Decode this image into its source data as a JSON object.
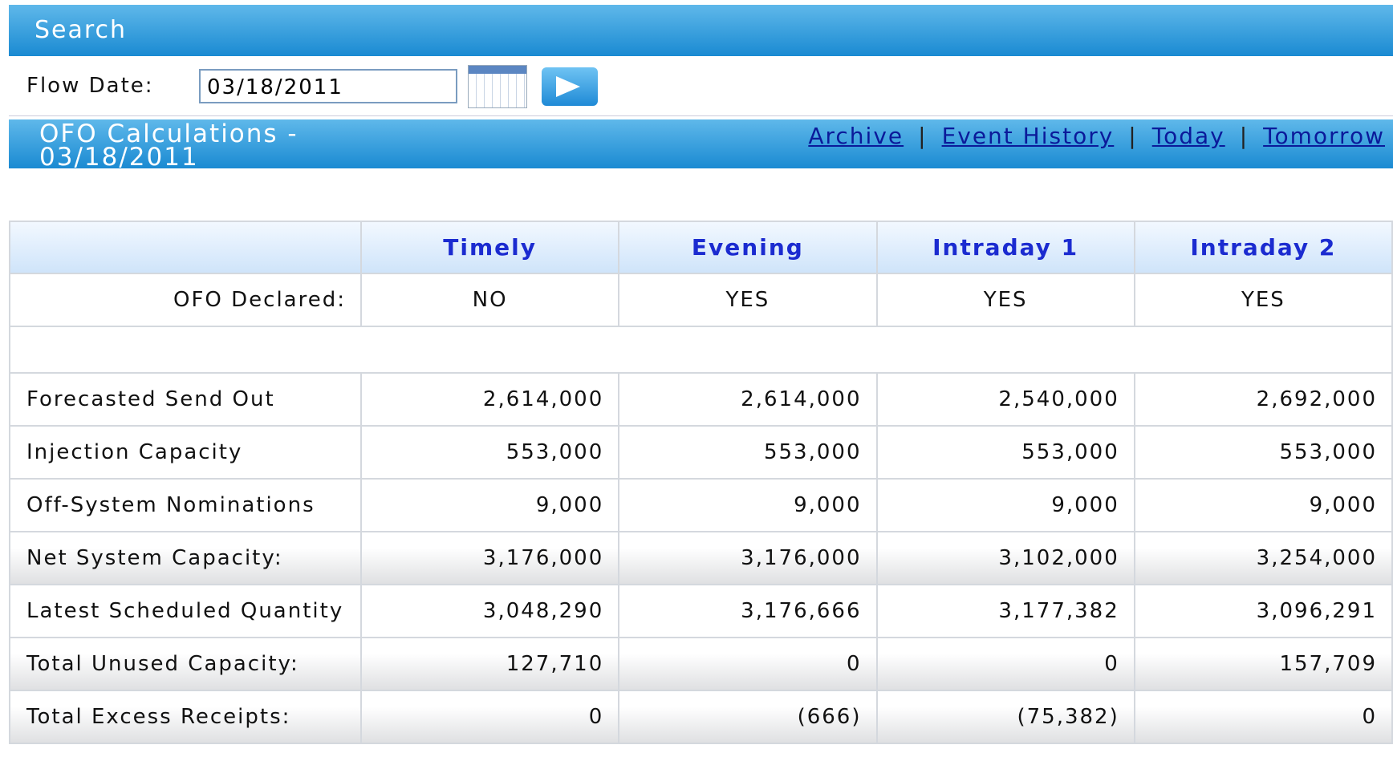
{
  "search": {
    "title": "Search",
    "flow_date_label": "Flow Date:",
    "flow_date": "03/18/2011"
  },
  "section": {
    "title": "OFO Calculations - 03/18/2011",
    "links": [
      "Archive",
      "Event History",
      "Today",
      "Tomorrow"
    ]
  },
  "table": {
    "columns": [
      "Timely",
      "Evening",
      "Intraday 1",
      "Intraday 2"
    ],
    "rows": [
      {
        "label": "OFO Declared:",
        "values": [
          "NO",
          "YES",
          "YES",
          "YES"
        ]
      },
      {
        "label": "Forecasted Send Out",
        "values": [
          "2,614,000",
          "2,614,000",
          "2,540,000",
          "2,692,000"
        ]
      },
      {
        "label": "Injection Capacity",
        "values": [
          "553,000",
          "553,000",
          "553,000",
          "553,000"
        ]
      },
      {
        "label": "Off-System Nominations",
        "values": [
          "9,000",
          "9,000",
          "9,000",
          "9,000"
        ]
      },
      {
        "label": "Net System Capacity:",
        "values": [
          "3,176,000",
          "3,176,000",
          "3,102,000",
          "3,254,000"
        ]
      },
      {
        "label": "Latest Scheduled Quantity",
        "values": [
          "3,048,290",
          "3,176,666",
          "3,177,382",
          "3,096,291"
        ]
      },
      {
        "label": "Total Unused Capacity:",
        "values": [
          "127,710",
          "0",
          "0",
          "157,709"
        ]
      },
      {
        "label": "Total Excess Receipts:",
        "values": [
          "0",
          "(666)",
          "(75,382)",
          "0"
        ]
      }
    ]
  }
}
